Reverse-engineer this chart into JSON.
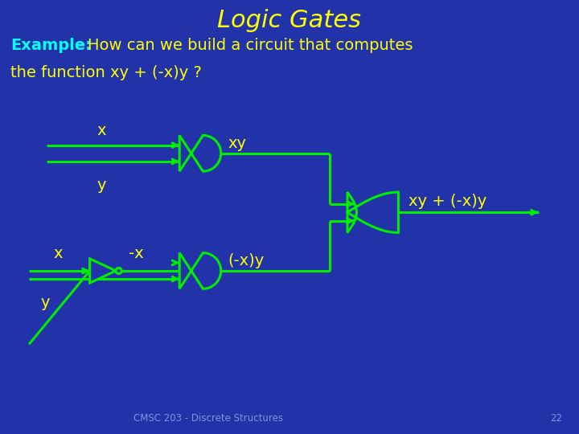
{
  "title": "Logic Gates",
  "title_color": "#FFFF00",
  "title_fontsize": 22,
  "bg_color": "#2233AA",
  "example_color": "#00FFFF",
  "text_color": "#FFFF00",
  "line_color": "#00EE00",
  "line_width": 2.2,
  "example_label": "Example:",
  "footer": "CMSC 203 - Discrete Structures",
  "page_num": "22"
}
